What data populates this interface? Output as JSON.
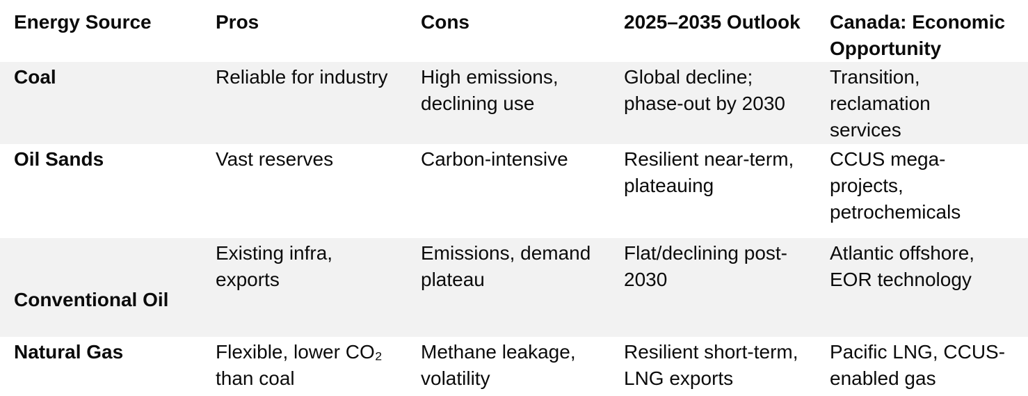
{
  "page": {
    "background_color": "#ffffff",
    "stripe_color": "#f2f2f2",
    "text_color": "#0b0b0b"
  },
  "table": {
    "columns": [
      {
        "label": "Energy Source"
      },
      {
        "label": "Pros"
      },
      {
        "label": "Cons"
      },
      {
        "label": "2025–2035 Outlook"
      },
      {
        "label": "Canada: Economic Opportunity"
      }
    ],
    "rows": [
      {
        "source": "Coal",
        "pros": "Reliable for industry",
        "cons": "High emissions,\ndeclining use",
        "outlook": "Global decline;\nphase-out by 2030",
        "opportunity": "Transition,\nreclamation\nservices"
      },
      {
        "source": "Oil Sands",
        "pros": "Vast reserves",
        "cons": "Carbon-intensive",
        "outlook": "Resilient near-term,\nplateauing",
        "opportunity": "CCUS mega-\nprojects,\npetrochemicals"
      },
      {
        "source": "Conventional Oil",
        "pros": "Existing infra,\nexports",
        "cons": "Emissions, demand\nplateau",
        "outlook": "Flat/declining post-\n2030",
        "opportunity": "Atlantic offshore,\nEOR technology"
      },
      {
        "source": "Natural Gas",
        "pros": "Flexible, lower CO₂\nthan coal",
        "cons": "Methane leakage,\nvolatility",
        "outlook": "Resilient short-term,\nLNG exports",
        "opportunity": "Pacific LNG, CCUS-\nenabled gas"
      }
    ]
  }
}
